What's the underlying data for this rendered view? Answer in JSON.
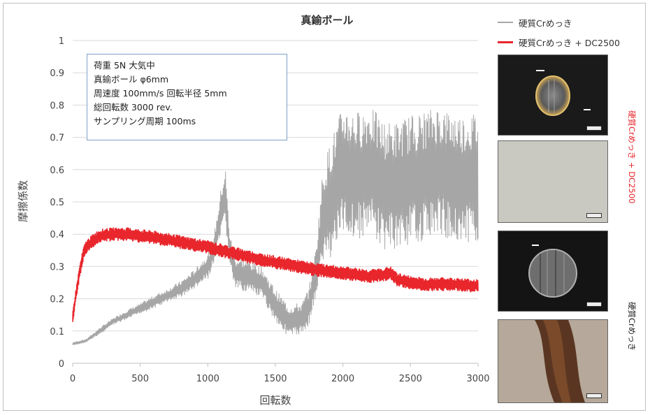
{
  "chart_data": {
    "type": "line",
    "title": "真鍮ボール",
    "xlabel": "回転数",
    "ylabel": "摩擦係数",
    "xlim": [
      0,
      3000
    ],
    "ylim": [
      0,
      1
    ],
    "x_ticks": [
      "0",
      "500",
      "1000",
      "1500",
      "2000",
      "2500",
      "3000"
    ],
    "y_ticks": [
      "0",
      "0.1",
      "0.2",
      "0.3",
      "0.4",
      "0.5",
      "0.6",
      "0.7",
      "0.8",
      "0.9",
      "1"
    ],
    "grid": true,
    "legend_position": "top-right",
    "series": [
      {
        "name": "硬質Crめっき",
        "color": "#a6a6a6",
        "x": [
          0,
          100,
          200,
          300,
          400,
          500,
          600,
          700,
          800,
          900,
          1000,
          1050,
          1100,
          1130,
          1160,
          1200,
          1300,
          1400,
          1500,
          1600,
          1700,
          1750,
          1800,
          1850,
          1900,
          1950,
          2000,
          2100,
          2200,
          2300,
          2400,
          2500,
          2600,
          2700,
          2800,
          2900,
          3000
        ],
        "values": [
          0.06,
          0.07,
          0.1,
          0.13,
          0.15,
          0.17,
          0.19,
          0.21,
          0.23,
          0.26,
          0.3,
          0.36,
          0.47,
          0.52,
          0.36,
          0.28,
          0.27,
          0.25,
          0.18,
          0.13,
          0.14,
          0.18,
          0.28,
          0.45,
          0.5,
          0.55,
          0.6,
          0.58,
          0.6,
          0.55,
          0.55,
          0.57,
          0.58,
          0.6,
          0.58,
          0.57,
          0.58
        ],
        "band": [
          0.005,
          0.005,
          0.01,
          0.01,
          0.015,
          0.015,
          0.02,
          0.02,
          0.025,
          0.03,
          0.04,
          0.05,
          0.08,
          0.09,
          0.05,
          0.05,
          0.05,
          0.05,
          0.05,
          0.05,
          0.05,
          0.06,
          0.08,
          0.15,
          0.18,
          0.19,
          0.2,
          0.2,
          0.2,
          0.2,
          0.2,
          0.2,
          0.2,
          0.2,
          0.2,
          0.2,
          0.2
        ]
      },
      {
        "name": "硬質Crめっき + DC2500",
        "color": "#e8262c",
        "x": [
          0,
          20,
          50,
          80,
          100,
          150,
          200,
          300,
          400,
          500,
          600,
          800,
          1000,
          1200,
          1400,
          1600,
          1800,
          2000,
          2200,
          2300,
          2350,
          2400,
          2500,
          2600,
          2800,
          3000
        ],
        "values": [
          0.14,
          0.2,
          0.28,
          0.34,
          0.36,
          0.38,
          0.395,
          0.4,
          0.4,
          0.395,
          0.39,
          0.375,
          0.36,
          0.34,
          0.32,
          0.305,
          0.29,
          0.28,
          0.27,
          0.275,
          0.28,
          0.26,
          0.25,
          0.245,
          0.245,
          0.24
        ],
        "band": [
          0.02,
          0.02,
          0.02,
          0.02,
          0.02,
          0.02,
          0.02,
          0.02,
          0.02,
          0.02,
          0.02,
          0.02,
          0.02,
          0.02,
          0.02,
          0.02,
          0.02,
          0.02,
          0.02,
          0.02,
          0.02,
          0.02,
          0.02,
          0.02,
          0.02,
          0.02
        ]
      }
    ],
    "annotation_lines": [
      "荷重 5N 大気中",
      "真鍮ボール φ6mm",
      "周速度 100mm/s 回転半径 5mm",
      "総回転数 3000 rev.",
      "サンプリング周期 100ms"
    ]
  },
  "side_labels": {
    "dc2500": "硬質Crめっき + DC2500",
    "cr": "硬質Crめっき"
  },
  "photos": [
    {
      "kind": "ball-wear-scar-dc2500",
      "tone": "dark"
    },
    {
      "kind": "disc-surface-dc2500",
      "tone": "light-grey"
    },
    {
      "kind": "ball-wear-scar-cr",
      "tone": "dark"
    },
    {
      "kind": "disc-wear-track-cr",
      "tone": "light-brown"
    }
  ]
}
